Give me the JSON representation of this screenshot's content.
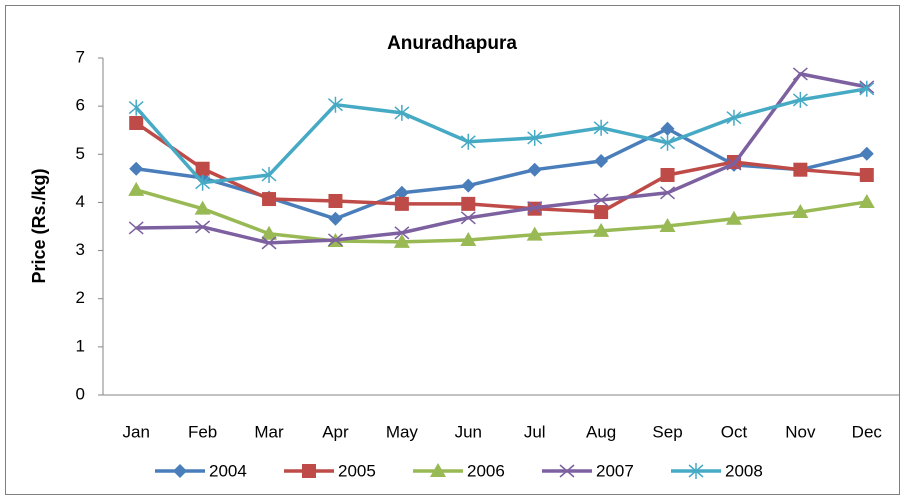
{
  "chart_data": {
    "type": "line",
    "title": "Anuradhapura",
    "y_label": "Price (Rs./kg)",
    "categories": [
      "Jan",
      "Feb",
      "Mar",
      "Apr",
      "May",
      "Jun",
      "Jul",
      "Aug",
      "Sep",
      "Oct",
      "Nov",
      "Dec"
    ],
    "ylim": [
      0,
      7
    ],
    "yticks": [
      0,
      1,
      2,
      3,
      4,
      5,
      6,
      7
    ],
    "grid": false,
    "legend": "bottom",
    "series": [
      {
        "name": "2004",
        "color": "#4a7ebb",
        "marker": "diamond",
        "values": [
          4.7,
          4.51,
          4.1,
          3.66,
          4.2,
          4.35,
          4.68,
          4.86,
          5.53,
          4.78,
          4.68,
          5.01
        ]
      },
      {
        "name": "2005",
        "color": "#be4b48",
        "marker": "square",
        "values": [
          5.65,
          4.7,
          4.07,
          4.03,
          3.97,
          3.97,
          3.87,
          3.8,
          4.57,
          4.84,
          4.68,
          4.57
        ]
      },
      {
        "name": "2006",
        "color": "#98b954",
        "marker": "triangle",
        "values": [
          4.26,
          3.87,
          3.35,
          3.2,
          3.18,
          3.22,
          3.33,
          3.41,
          3.51,
          3.66,
          3.8,
          4.01
        ]
      },
      {
        "name": "2007",
        "color": "#7d60a0",
        "marker": "x",
        "values": [
          3.47,
          3.49,
          3.16,
          3.22,
          3.37,
          3.68,
          3.89,
          4.05,
          4.2,
          4.8,
          6.67,
          6.4
        ]
      },
      {
        "name": "2008",
        "color": "#46aac5",
        "marker": "star",
        "values": [
          5.97,
          4.41,
          4.57,
          6.03,
          5.86,
          5.26,
          5.34,
          5.55,
          5.24,
          5.76,
          6.13,
          6.36
        ]
      }
    ]
  }
}
